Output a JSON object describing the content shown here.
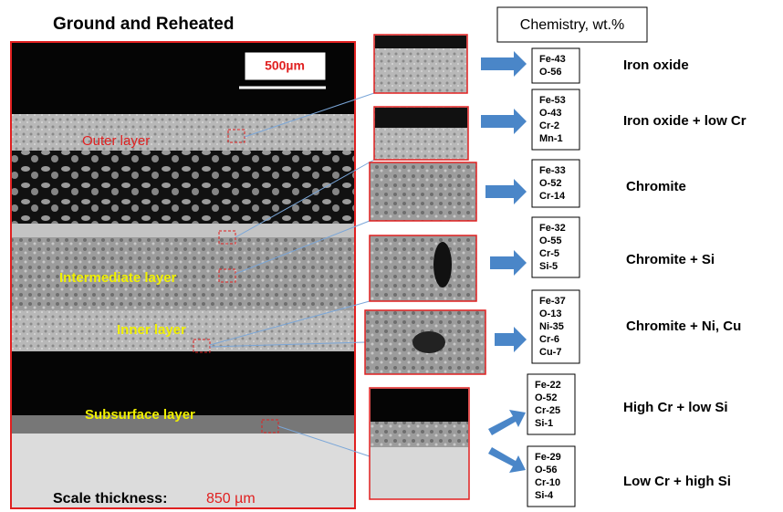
{
  "title": "Ground and Reheated",
  "scale_bar": "500µm",
  "layers": [
    "Outer layer",
    "Intermediate layer",
    "Inner  layer",
    "Subsurface layer"
  ],
  "footer": {
    "label": "Scale thickness:",
    "value": "850 µm"
  },
  "chemistry_header": "Chemistry, wt.%",
  "rows": [
    {
      "composition": [
        "Fe-43",
        "O-56"
      ],
      "phase": "Iron oxide"
    },
    {
      "composition": [
        "Fe-53",
        "O-43",
        "Cr-2",
        "Mn-1"
      ],
      "phase": "Iron oxide + low Cr"
    },
    {
      "composition": [
        "Fe-33",
        "O-52",
        "Cr-14"
      ],
      "phase": "Chromite"
    },
    {
      "composition": [
        "Fe-32",
        "O-55",
        "Cr-5",
        "Si-5"
      ],
      "phase": "Chromite + Si"
    },
    {
      "composition": [
        "Fe-37",
        "O-13",
        "Ni-35",
        "Cr-6",
        "Cu-7"
      ],
      "phase": "Chromite + Ni, Cu"
    },
    {
      "composition": [
        "Fe-22",
        "O-52",
        "Cr-25",
        "Si-1"
      ],
      "phase": "High Cr + low Si"
    },
    {
      "composition": [
        "Fe-29",
        "O-56",
        "Cr-10",
        "Si-4"
      ],
      "phase": "Low Cr + high Si"
    }
  ]
}
